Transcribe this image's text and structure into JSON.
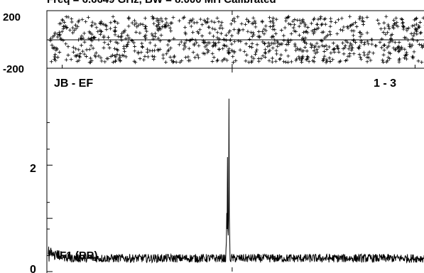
{
  "header": {
    "title": "Freq = 6.6649 GHz, BW = 8.000 MH   Calibrated"
  },
  "phase_panel": {
    "tick_top": "200",
    "tick_bottom": "-200",
    "ylim": [
      -200,
      200
    ],
    "mid_line": 0
  },
  "amp_panel": {
    "baseline_label": "JB - EF",
    "channel_label": "1 - 3",
    "tick_2": "2",
    "tick_0": "0",
    "if_label": "IF1 (RR)"
  },
  "chart_data": [
    {
      "type": "scatter",
      "title": "",
      "xlabel": "",
      "ylabel": "",
      "ylim": [
        -200,
        200
      ],
      "marker": "+",
      "grid": false,
      "note_series": "dense uniform random phase scatter across full channel range",
      "x_range": [
        0,
        1024
      ],
      "y_range": [
        -160,
        160
      ],
      "yticks": [
        200,
        -200
      ]
    },
    {
      "type": "line",
      "title": "",
      "xlabel": "",
      "ylabel": "",
      "ylim": [
        0,
        3.5
      ],
      "yticks": [
        2,
        0
      ],
      "x_range": [
        0,
        1024
      ],
      "baseline_level": 0.25,
      "noise_level": 0.08,
      "peaks": [
        {
          "x": 486,
          "y": 3.25
        },
        {
          "x": 482,
          "y": 2.15
        },
        {
          "x": 480,
          "y": 1.1
        }
      ]
    }
  ]
}
